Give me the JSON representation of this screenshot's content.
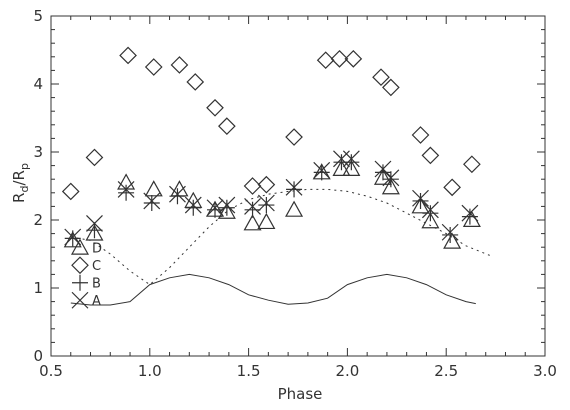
{
  "chart_data": {
    "type": "scatter",
    "title": "",
    "xlabel": "Phase",
    "ylabel": {
      "base": "R",
      "sub1": "d",
      "slash": "/R",
      "sub2": "p"
    },
    "xlim": [
      0.5,
      3.0
    ],
    "ylim": [
      0,
      5
    ],
    "xticks": [
      "0.5",
      "1.0",
      "1.5",
      "2.0",
      "2.5",
      "3.0"
    ],
    "yticks": [
      "0",
      "1",
      "2",
      "3",
      "4",
      "5"
    ],
    "grid": false,
    "legend_position": "bottom-left",
    "legend": [
      {
        "label": "A",
        "marker": "x"
      },
      {
        "label": "B",
        "marker": "plus"
      },
      {
        "label": "C",
        "marker": "diamond"
      },
      {
        "label": "D",
        "marker": "triangle"
      }
    ],
    "series": [
      {
        "name": "A",
        "marker": "x",
        "points": [
          [
            0.61,
            1.75
          ],
          [
            0.72,
            1.95
          ],
          [
            0.88,
            2.45
          ],
          [
            1.01,
            2.28
          ],
          [
            1.14,
            2.38
          ],
          [
            1.22,
            2.22
          ],
          [
            1.33,
            2.18
          ],
          [
            1.39,
            2.22
          ],
          [
            1.52,
            2.2
          ],
          [
            1.59,
            2.25
          ],
          [
            1.73,
            2.48
          ],
          [
            1.87,
            2.73
          ],
          [
            1.97,
            2.9
          ],
          [
            2.02,
            2.9
          ],
          [
            2.18,
            2.75
          ],
          [
            2.22,
            2.62
          ],
          [
            2.37,
            2.32
          ],
          [
            2.42,
            2.15
          ],
          [
            2.52,
            1.82
          ],
          [
            2.62,
            2.1
          ]
        ]
      },
      {
        "name": "B",
        "marker": "plus",
        "points": [
          [
            0.61,
            1.73
          ],
          [
            0.72,
            1.85
          ],
          [
            0.88,
            2.4
          ],
          [
            1.01,
            2.25
          ],
          [
            1.14,
            2.35
          ],
          [
            1.22,
            2.18
          ],
          [
            1.33,
            2.15
          ],
          [
            1.39,
            2.18
          ],
          [
            1.52,
            2.15
          ],
          [
            1.59,
            2.22
          ],
          [
            1.73,
            2.45
          ],
          [
            1.87,
            2.7
          ],
          [
            1.97,
            2.85
          ],
          [
            2.02,
            2.85
          ],
          [
            2.18,
            2.7
          ],
          [
            2.22,
            2.6
          ],
          [
            2.37,
            2.28
          ],
          [
            2.42,
            2.1
          ],
          [
            2.52,
            1.78
          ],
          [
            2.62,
            2.05
          ]
        ]
      },
      {
        "name": "C",
        "marker": "diamond",
        "points": [
          [
            0.6,
            2.42
          ],
          [
            0.72,
            2.92
          ],
          [
            0.89,
            4.42
          ],
          [
            1.02,
            4.25
          ],
          [
            1.15,
            4.28
          ],
          [
            1.23,
            4.03
          ],
          [
            1.33,
            3.65
          ],
          [
            1.39,
            3.38
          ],
          [
            1.52,
            2.5
          ],
          [
            1.59,
            2.52
          ],
          [
            1.73,
            3.22
          ],
          [
            1.89,
            4.35
          ],
          [
            1.96,
            4.37
          ],
          [
            2.03,
            4.37
          ],
          [
            2.17,
            4.1
          ],
          [
            2.22,
            3.95
          ],
          [
            2.37,
            3.25
          ],
          [
            2.42,
            2.95
          ],
          [
            2.53,
            2.48
          ],
          [
            2.63,
            2.82
          ]
        ]
      },
      {
        "name": "D",
        "marker": "triangle",
        "points": [
          [
            0.61,
            1.7
          ],
          [
            0.72,
            1.8
          ],
          [
            0.88,
            2.55
          ],
          [
            1.02,
            2.45
          ],
          [
            1.15,
            2.45
          ],
          [
            1.22,
            2.28
          ],
          [
            1.33,
            2.15
          ],
          [
            1.39,
            2.12
          ],
          [
            1.52,
            1.95
          ],
          [
            1.59,
            1.97
          ],
          [
            1.73,
            2.15
          ],
          [
            1.87,
            2.7
          ],
          [
            1.97,
            2.75
          ],
          [
            2.02,
            2.75
          ],
          [
            2.18,
            2.62
          ],
          [
            2.22,
            2.48
          ],
          [
            2.37,
            2.2
          ],
          [
            2.42,
            1.98
          ],
          [
            2.53,
            1.68
          ],
          [
            2.63,
            2.0
          ]
        ]
      }
    ],
    "curves": [
      {
        "style": "dotted",
        "points": [
          [
            0.6,
            1.75
          ],
          [
            0.7,
            1.7
          ],
          [
            0.8,
            1.5
          ],
          [
            0.9,
            1.25
          ],
          [
            1.0,
            1.05
          ],
          [
            1.1,
            1.3
          ],
          [
            1.2,
            1.6
          ],
          [
            1.3,
            1.9
          ],
          [
            1.4,
            2.15
          ],
          [
            1.5,
            2.3
          ],
          [
            1.6,
            2.38
          ],
          [
            1.7,
            2.42
          ],
          [
            1.8,
            2.45
          ],
          [
            1.9,
            2.45
          ],
          [
            2.0,
            2.42
          ],
          [
            2.1,
            2.35
          ],
          [
            2.2,
            2.25
          ],
          [
            2.3,
            2.1
          ],
          [
            2.4,
            1.95
          ],
          [
            2.5,
            1.8
          ],
          [
            2.6,
            1.62
          ],
          [
            2.72,
            1.48
          ]
        ]
      },
      {
        "style": "solid",
        "points": [
          [
            0.6,
            0.78
          ],
          [
            0.7,
            0.75
          ],
          [
            0.8,
            0.75
          ],
          [
            0.9,
            0.8
          ],
          [
            1.0,
            1.05
          ],
          [
            1.1,
            1.15
          ],
          [
            1.2,
            1.2
          ],
          [
            1.3,
            1.15
          ],
          [
            1.4,
            1.05
          ],
          [
            1.5,
            0.9
          ],
          [
            1.6,
            0.82
          ],
          [
            1.7,
            0.76
          ],
          [
            1.8,
            0.78
          ],
          [
            1.9,
            0.85
          ],
          [
            2.0,
            1.05
          ],
          [
            2.1,
            1.15
          ],
          [
            2.2,
            1.2
          ],
          [
            2.3,
            1.15
          ],
          [
            2.4,
            1.05
          ],
          [
            2.5,
            0.9
          ],
          [
            2.6,
            0.8
          ],
          [
            2.65,
            0.77
          ]
        ]
      }
    ]
  }
}
